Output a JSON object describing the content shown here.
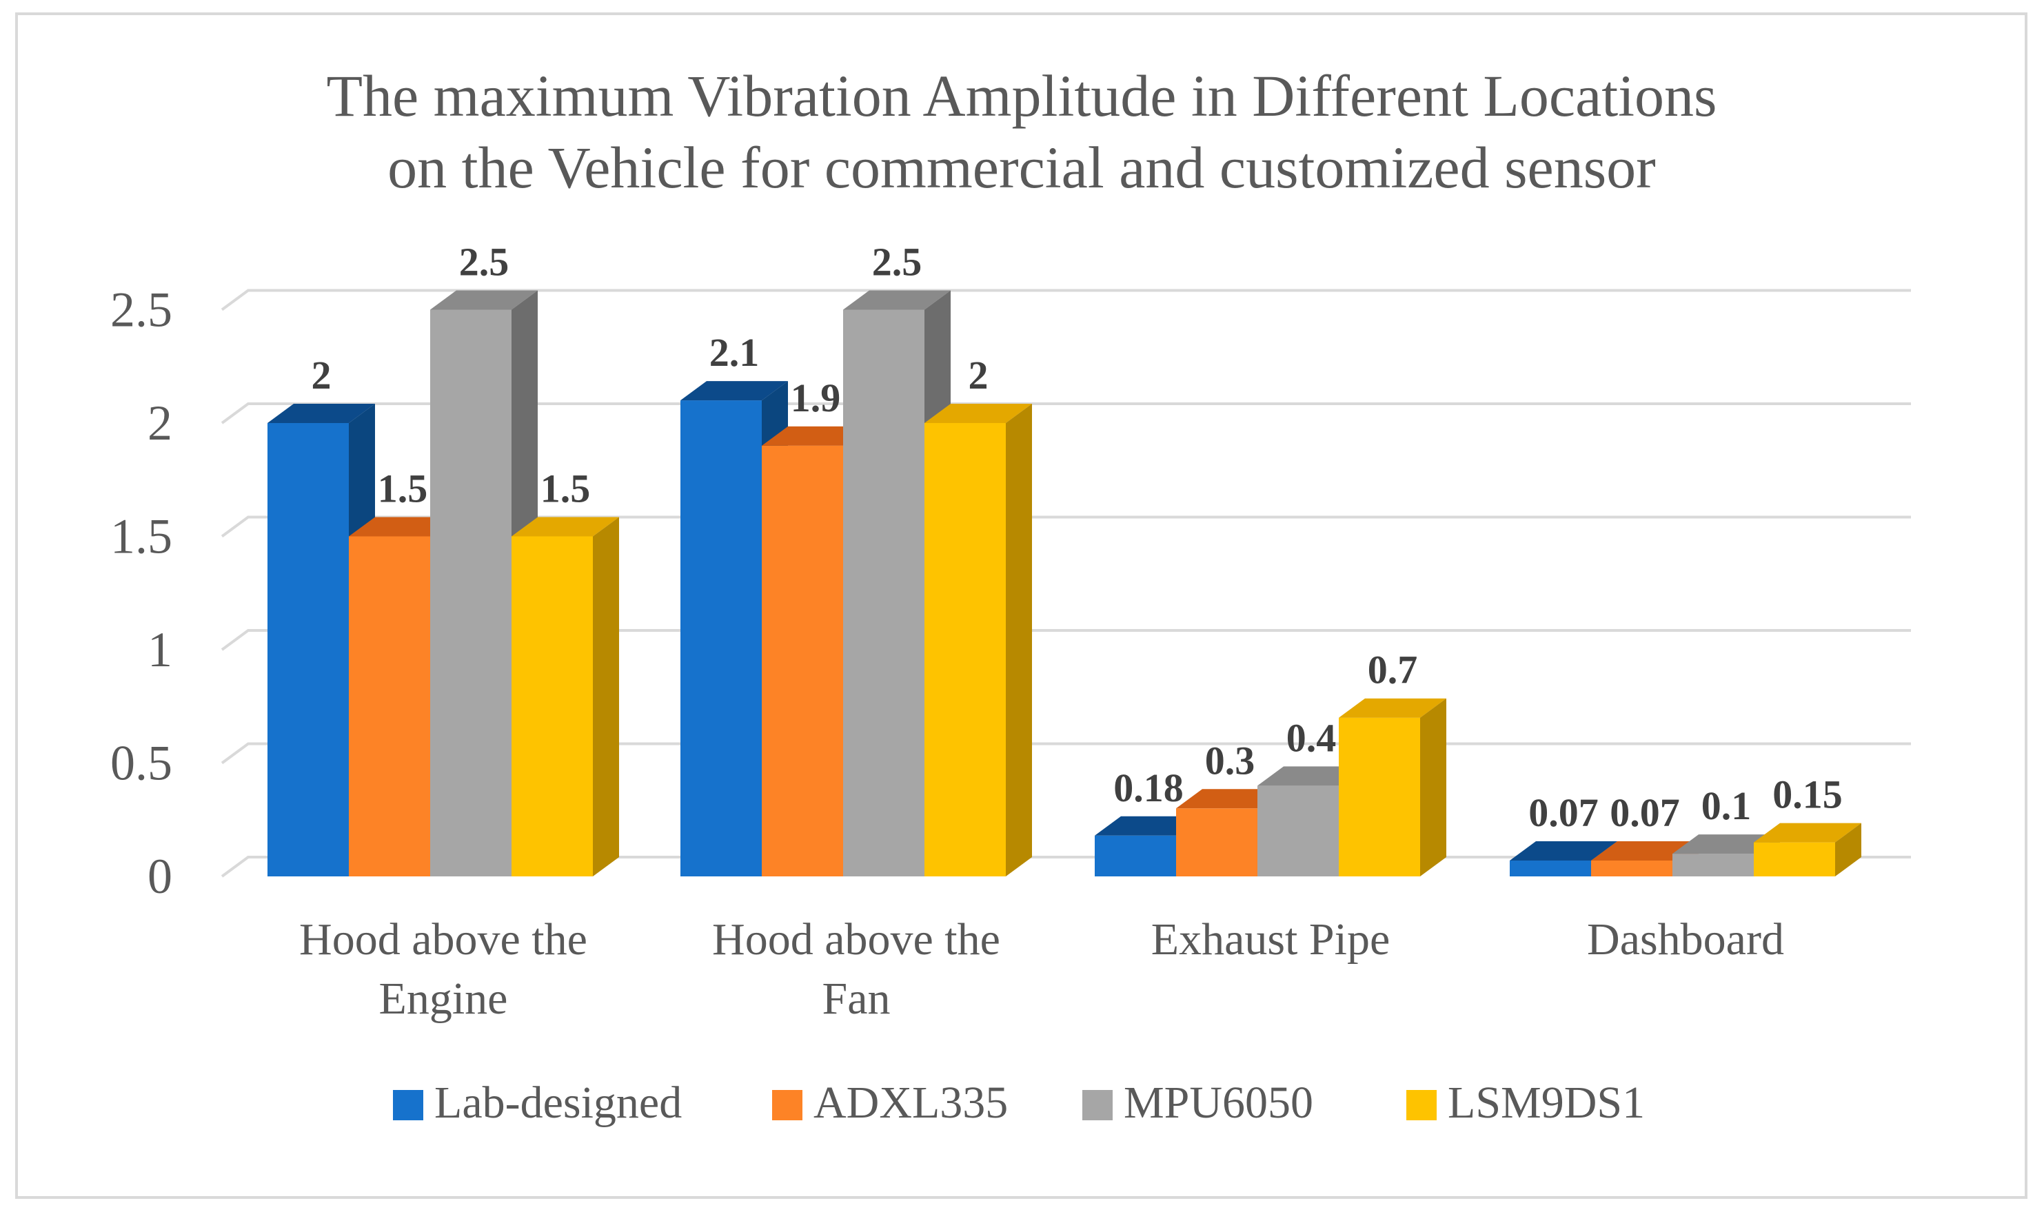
{
  "chart_data": {
    "type": "bar",
    "style": "3d-clustered-column",
    "title_lines": [
      "The maximum Vibration Amplitude in Different Locations",
      "on the Vehicle for commercial and customized sensor"
    ],
    "xlabel": "",
    "ylabel": "",
    "ylim": [
      0,
      2.5
    ],
    "yticks": [
      0,
      0.5,
      1,
      1.5,
      2,
      2.5
    ],
    "ytick_labels": [
      "0",
      "0.5",
      "1",
      "1.5",
      "2",
      "2.5"
    ],
    "grid": true,
    "legend_position": "bottom",
    "categories": [
      {
        "lines": [
          "Hood above the",
          "Engine"
        ]
      },
      {
        "lines": [
          "Hood above the",
          "Fan"
        ]
      },
      {
        "lines": [
          "Exhaust Pipe"
        ]
      },
      {
        "lines": [
          "Dashboard"
        ]
      }
    ],
    "series": [
      {
        "name": "Lab-designed",
        "color": "#1672cc",
        "top_color": "#0c4a8a",
        "side_color": "#0b467f",
        "values": [
          2,
          2.1,
          0.18,
          0.07
        ],
        "labels": [
          "2",
          "2.1",
          "0.18",
          "0.07"
        ]
      },
      {
        "name": "ADXL335",
        "color": "#fd8326",
        "top_color": "#d25e14",
        "side_color": "#c85a12",
        "values": [
          1.5,
          1.9,
          0.3,
          0.07
        ],
        "labels": [
          "1.5",
          "1.9",
          "0.3",
          "0.07"
        ]
      },
      {
        "name": "MPU6050",
        "color": "#a6a6a6",
        "top_color": "#8a8a8a",
        "side_color": "#6d6d6d",
        "values": [
          2.5,
          2.5,
          0.4,
          0.1
        ],
        "labels": [
          "2.5",
          "2.5",
          "0.4",
          "0.1"
        ]
      },
      {
        "name": "LSM9DS1",
        "color": "#fec300",
        "top_color": "#e4a800",
        "side_color": "#b78900",
        "values": [
          1.5,
          2,
          0.7,
          0.15
        ],
        "labels": [
          "1.5",
          "2",
          "0.7",
          "0.15"
        ]
      }
    ],
    "gridline_color": "#d9d9d9"
  }
}
